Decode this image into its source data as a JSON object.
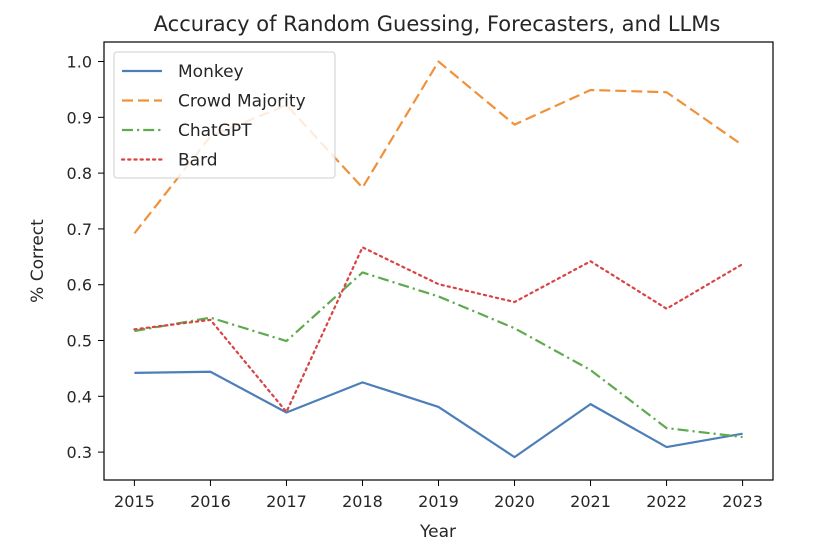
{
  "chart_data": {
    "type": "line",
    "title": "Accuracy of Random Guessing, Forecasters, and LLMs",
    "xlabel": "Year",
    "ylabel": "% Correct",
    "x": [
      "2015",
      "2016",
      "2017",
      "2018",
      "2019",
      "2020",
      "2021",
      "2022",
      "2023"
    ],
    "xlim": [
      2014.6,
      2023.4
    ],
    "ylim": [
      0.25,
      1.035
    ],
    "yticks": [
      "0.3",
      "0.4",
      "0.5",
      "0.6",
      "0.7",
      "0.8",
      "0.9",
      "1.0"
    ],
    "grid": false,
    "legend": "upper left",
    "series": [
      {
        "name": "Monkey",
        "color": "#4c7fb8",
        "style": "solid",
        "values": [
          0.442,
          0.444,
          0.371,
          0.425,
          0.381,
          0.291,
          0.386,
          0.309,
          0.333
        ]
      },
      {
        "name": "Crowd Majority",
        "color": "#f0913a",
        "style": "dashed",
        "values": [
          0.692,
          0.866,
          0.922,
          0.774,
          1.0,
          0.887,
          0.949,
          0.945,
          0.85
        ]
      },
      {
        "name": "ChatGPT",
        "color": "#5fa94f",
        "style": "dashdot",
        "values": [
          0.517,
          0.541,
          0.499,
          0.622,
          0.579,
          0.522,
          0.447,
          0.343,
          0.327
        ]
      },
      {
        "name": "Bard",
        "color": "#d84444",
        "style": "dotted",
        "values": [
          0.52,
          0.537,
          0.372,
          0.667,
          0.601,
          0.569,
          0.642,
          0.557,
          0.637
        ]
      }
    ]
  }
}
